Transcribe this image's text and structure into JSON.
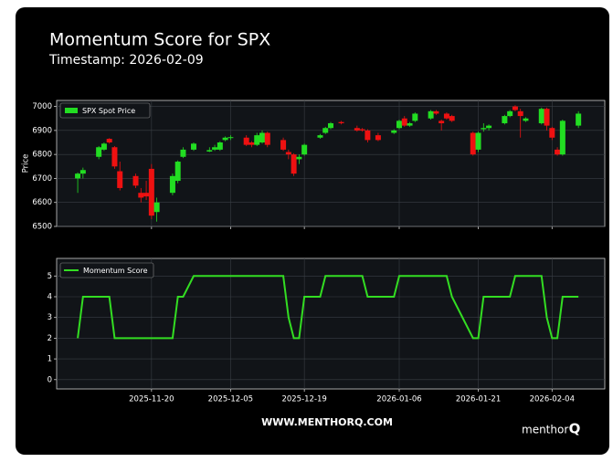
{
  "title": "Momentum Score for SPX",
  "subtitle": "Timestamp: 2026-02-09",
  "footer": "WWW.MENTHORQ.COM",
  "logo": "menthor",
  "logo_mark": "Q",
  "chart_data": [
    {
      "type": "candlestick",
      "ylabel": "Price",
      "name": "SPX Spot Price",
      "up_color": "#22dd22",
      "down_color": "#ee1111",
      "x": [
        "2025-11-06",
        "2025-11-07",
        "2025-11-10",
        "2025-11-11",
        "2025-11-12",
        "2025-11-13",
        "2025-11-14",
        "2025-11-17",
        "2025-11-18",
        "2025-11-19",
        "2025-11-20",
        "2025-11-21",
        "2025-11-24",
        "2025-11-25",
        "2025-11-26",
        "2025-11-28",
        "2025-12-01",
        "2025-12-02",
        "2025-12-03",
        "2025-12-04",
        "2025-12-05",
        "2025-12-08",
        "2025-12-09",
        "2025-12-10",
        "2025-12-11",
        "2025-12-12",
        "2025-12-15",
        "2025-12-16",
        "2025-12-17",
        "2025-12-18",
        "2025-12-19",
        "2025-12-22",
        "2025-12-23",
        "2025-12-24",
        "2025-12-26",
        "2025-12-29",
        "2025-12-30",
        "2025-12-31",
        "2026-01-02",
        "2026-01-05",
        "2026-01-06",
        "2026-01-07",
        "2026-01-08",
        "2026-01-09",
        "2026-01-12",
        "2026-01-13",
        "2026-01-14",
        "2026-01-15",
        "2026-01-16",
        "2026-01-20",
        "2026-01-21",
        "2026-01-22",
        "2026-01-23",
        "2026-01-26",
        "2026-01-27",
        "2026-01-28",
        "2026-01-29",
        "2026-01-30",
        "2026-02-02",
        "2026-02-03",
        "2026-02-04",
        "2026-02-05",
        "2026-02-06",
        "2026-02-09"
      ],
      "open": [
        6700,
        6720,
        6790,
        6820,
        6865,
        6830,
        6730,
        6710,
        6640,
        6640,
        6740,
        6560,
        6640,
        6690,
        6790,
        6820,
        6812,
        6820,
        6820,
        6860,
        6870,
        6870,
        6850,
        6840,
        6850,
        6890,
        6860,
        6810,
        6800,
        6780,
        6800,
        6870,
        6890,
        6910,
        6935,
        6910,
        6905,
        6900,
        6880,
        6890,
        6910,
        6950,
        6920,
        6940,
        6950,
        6980,
        6940,
        6970,
        6960,
        6890,
        6820,
        6905,
        6910,
        6930,
        6960,
        7000,
        6980,
        6940,
        6930,
        6990,
        6910,
        6820,
        6800,
        6920
      ],
      "high": [
        6725,
        6745,
        6835,
        6850,
        6868,
        6835,
        6770,
        6720,
        6660,
        6690,
        6760,
        6620,
        6720,
        6775,
        6830,
        6850,
        6830,
        6840,
        6855,
        6875,
        6880,
        6880,
        6855,
        6890,
        6900,
        6895,
        6870,
        6820,
        6805,
        6800,
        6845,
        6885,
        6915,
        6935,
        6940,
        6920,
        6910,
        6905,
        6890,
        6905,
        6945,
        6960,
        6935,
        6975,
        6985,
        6985,
        6945,
        6975,
        6965,
        6895,
        6895,
        6930,
        6925,
        6965,
        6985,
        7005,
        6990,
        6955,
        6995,
        6995,
        6915,
        6830,
        6945,
        6980
      ],
      "low": [
        6640,
        6700,
        6780,
        6815,
        6845,
        6740,
        6650,
        6660,
        6600,
        6610,
        6530,
        6520,
        6630,
        6680,
        6785,
        6815,
        6810,
        6815,
        6815,
        6855,
        6860,
        6835,
        6830,
        6835,
        6845,
        6830,
        6815,
        6780,
        6710,
        6760,
        6795,
        6865,
        6885,
        6905,
        6925,
        6895,
        6895,
        6850,
        6855,
        6885,
        6905,
        6915,
        6915,
        6935,
        6945,
        6965,
        6900,
        6945,
        6935,
        6795,
        6810,
        6895,
        6900,
        6925,
        6955,
        6980,
        6870,
        6935,
        6925,
        6900,
        6860,
        6795,
        6795,
        6910
      ],
      "close": [
        6720,
        6735,
        6830,
        6845,
        6850,
        6750,
        6660,
        6670,
        6620,
        6625,
        6545,
        6600,
        6710,
        6770,
        6820,
        6845,
        6818,
        6830,
        6850,
        6870,
        6872,
        6840,
        6840,
        6880,
        6890,
        6840,
        6820,
        6800,
        6720,
        6790,
        6840,
        6880,
        6910,
        6930,
        6930,
        6900,
        6900,
        6860,
        6860,
        6900,
        6940,
        6920,
        6930,
        6970,
        6980,
        6970,
        6930,
        6950,
        6940,
        6800,
        6890,
        6910,
        6920,
        6960,
        6980,
        6985,
        6960,
        6950,
        6990,
        6920,
        6870,
        6800,
        6940,
        6970
      ],
      "xlim": [
        "2025-11-02",
        "2026-02-14"
      ],
      "ylim": [
        6500,
        7025
      ],
      "yticks": [
        6500,
        6600,
        6700,
        6800,
        6900,
        7000
      ],
      "grid": true,
      "legend": "upper left"
    },
    {
      "type": "line",
      "color": "#33dd22",
      "series": [
        {
          "name": "Momentum Score",
          "color": "#33dd22",
          "values": [
            2,
            4,
            4,
            4,
            4,
            2,
            2,
            2,
            2,
            2,
            2,
            2,
            2,
            4,
            4,
            5,
            5,
            5,
            5,
            5,
            5,
            5,
            5,
            5,
            5,
            5,
            5,
            3,
            2,
            2,
            4,
            4,
            5,
            5,
            5,
            5,
            5,
            4,
            4,
            4,
            5,
            5,
            5,
            5,
            5,
            5,
            5,
            5,
            4,
            2,
            2,
            4,
            4,
            4,
            4,
            5,
            5,
            5,
            5,
            3,
            2,
            2,
            4,
            4
          ]
        }
      ],
      "x": [
        "2025-11-06",
        "2025-11-07",
        "2025-11-10",
        "2025-11-11",
        "2025-11-12",
        "2025-11-13",
        "2025-11-14",
        "2025-11-17",
        "2025-11-18",
        "2025-11-19",
        "2025-11-20",
        "2025-11-21",
        "2025-11-24",
        "2025-11-25",
        "2025-11-26",
        "2025-11-28",
        "2025-12-01",
        "2025-12-02",
        "2025-12-03",
        "2025-12-04",
        "2025-12-05",
        "2025-12-08",
        "2025-12-09",
        "2025-12-10",
        "2025-12-11",
        "2025-12-12",
        "2025-12-15",
        "2025-12-16",
        "2025-12-17",
        "2025-12-18",
        "2025-12-19",
        "2025-12-22",
        "2025-12-23",
        "2025-12-24",
        "2025-12-26",
        "2025-12-29",
        "2025-12-30",
        "2025-12-31",
        "2026-01-02",
        "2026-01-05",
        "2026-01-06",
        "2026-01-07",
        "2026-01-08",
        "2026-01-09",
        "2026-01-12",
        "2026-01-13",
        "2026-01-14",
        "2026-01-15",
        "2026-01-16",
        "2026-01-20",
        "2026-01-21",
        "2026-01-22",
        "2026-01-23",
        "2026-01-26",
        "2026-01-27",
        "2026-01-28",
        "2026-01-29",
        "2026-01-30",
        "2026-02-02",
        "2026-02-03",
        "2026-02-04",
        "2026-02-05",
        "2026-02-06",
        "2026-02-09"
      ],
      "xlim": [
        "2025-11-02",
        "2026-02-14"
      ],
      "xticks": [
        "2025-11-20",
        "2025-12-05",
        "2025-12-19",
        "2026-01-06",
        "2026-01-21",
        "2026-02-04"
      ],
      "ylim": [
        -0.45,
        5.85
      ],
      "yticks": [
        0,
        1,
        2,
        3,
        4,
        5
      ],
      "grid": true,
      "legend": "upper left"
    }
  ]
}
